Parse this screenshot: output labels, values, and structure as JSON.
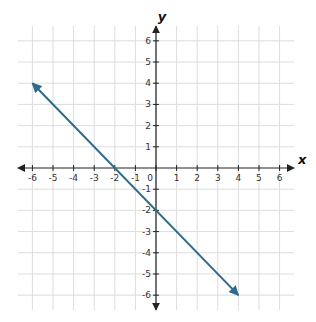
{
  "chart_data": {
    "type": "line",
    "x": [
      -6,
      4
    ],
    "values": [
      4,
      -6
    ],
    "color": "#2e6b8a",
    "xlim": [
      -6.7,
      6.7
    ],
    "ylim": [
      -6.7,
      6.7
    ],
    "xticks": [
      -6,
      -5,
      -4,
      -3,
      -2,
      -1,
      0,
      1,
      2,
      3,
      4,
      5,
      6
    ],
    "yticks": [
      -6,
      -5,
      -4,
      -3,
      -2,
      -1,
      1,
      2,
      3,
      4,
      5,
      6
    ],
    "x_label": "x",
    "y_label": "y",
    "grid": true
  }
}
